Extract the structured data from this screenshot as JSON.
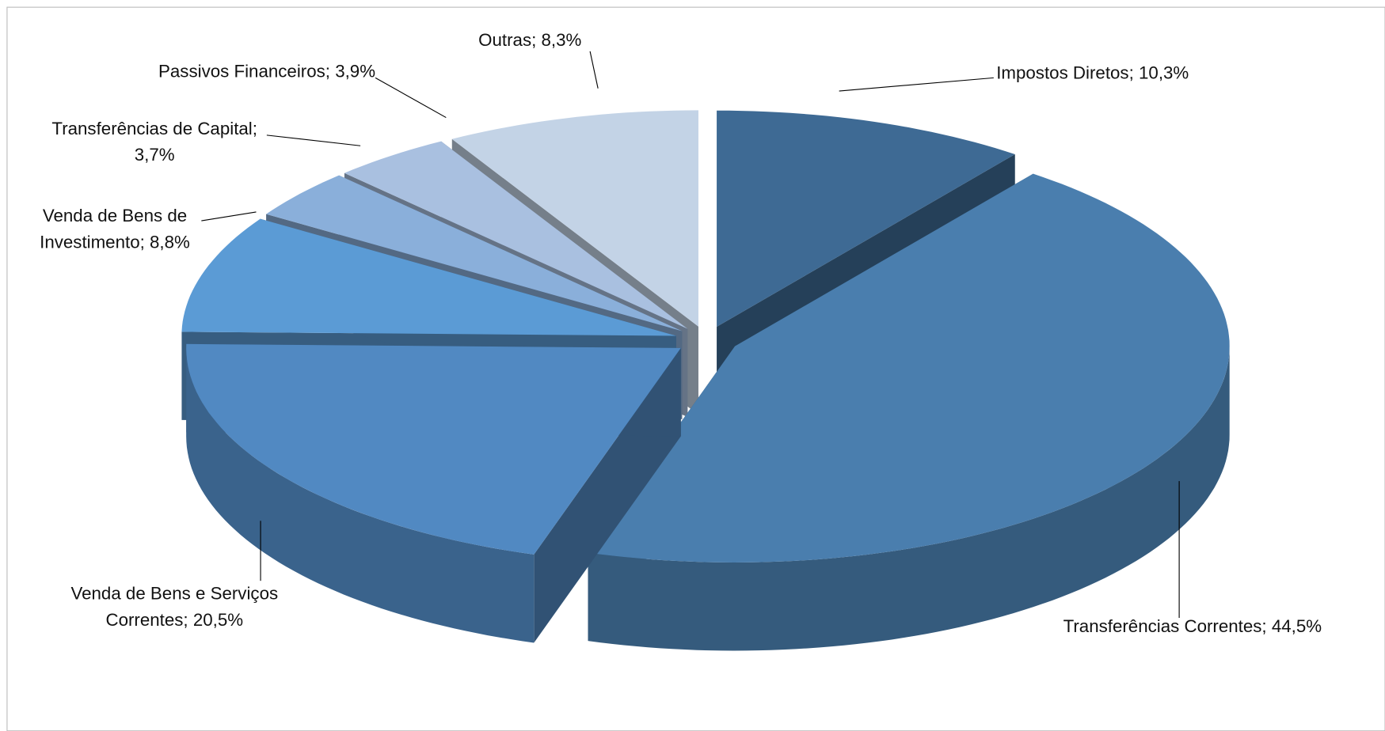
{
  "chart_data": {
    "type": "pie3d",
    "categories": [
      "Impostos Diretos",
      "Transferências Correntes",
      "Venda de Bens e Serviços Correntes",
      "Venda de Bens de Investimento",
      "Transferências de Capital",
      "Passivos Financeiros",
      "Outras"
    ],
    "values": [
      10.3,
      44.5,
      20.5,
      8.8,
      3.7,
      3.9,
      8.3
    ],
    "value_labels": [
      "10,3%",
      "44,5%",
      "20,5%",
      "8,8%",
      "3,7%",
      "3,9%",
      "8,3%"
    ],
    "label_separator": "; ",
    "colors": [
      "#3e6a94",
      "#4a7eae",
      "#5189c2",
      "#5b9bd5",
      "#8aafda",
      "#a9c0e0",
      "#c3d3e6"
    ]
  }
}
